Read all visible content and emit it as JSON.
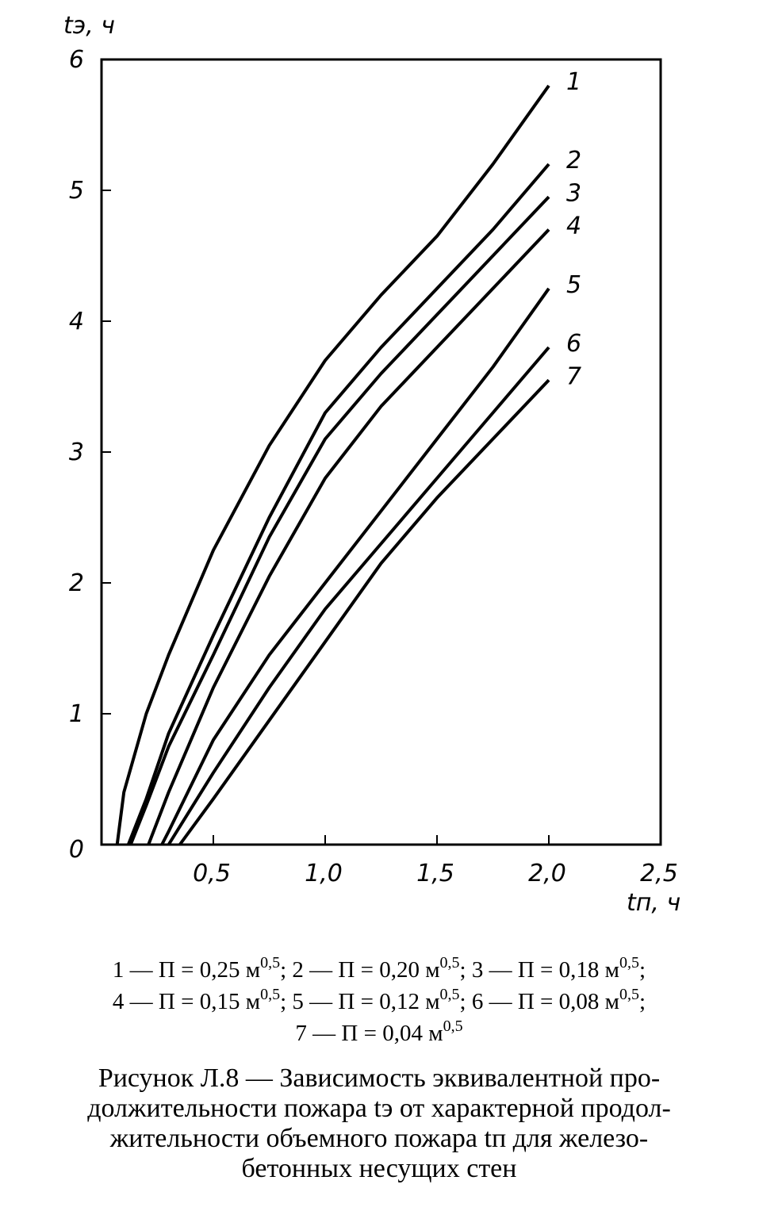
{
  "chart_data": {
    "type": "line",
    "y_label": "tэ, ч",
    "x_label": "tп, ч",
    "xlim": [
      0,
      2.5
    ],
    "ylim": [
      0,
      6
    ],
    "xticks": [
      {
        "value": 0.5,
        "label": "0,5"
      },
      {
        "value": 1.0,
        "label": "1,0"
      },
      {
        "value": 1.5,
        "label": "1,5"
      },
      {
        "value": 2.0,
        "label": "2,0"
      },
      {
        "value": 2.5,
        "label": "2,5"
      }
    ],
    "yticks": [
      0,
      1,
      2,
      3,
      4,
      5,
      6
    ],
    "color": "#000000",
    "series": [
      {
        "name": "1",
        "x": [
          0.07,
          0.1,
          0.2,
          0.3,
          0.5,
          0.75,
          1.0,
          1.25,
          1.5,
          1.75,
          2.0
        ],
        "values": [
          0,
          0.4,
          1.0,
          1.45,
          2.25,
          3.05,
          3.7,
          4.2,
          4.65,
          5.2,
          5.8
        ]
      },
      {
        "name": "2",
        "x": [
          0.12,
          0.2,
          0.3,
          0.5,
          0.75,
          1.0,
          1.25,
          1.5,
          1.75,
          2.0
        ],
        "values": [
          0,
          0.35,
          0.85,
          1.6,
          2.5,
          3.3,
          3.8,
          4.25,
          4.7,
          5.2
        ]
      },
      {
        "name": "3",
        "x": [
          0.13,
          0.2,
          0.3,
          0.5,
          0.75,
          1.0,
          1.25,
          1.5,
          1.75,
          2.0
        ],
        "values": [
          0,
          0.3,
          0.75,
          1.45,
          2.35,
          3.1,
          3.6,
          4.05,
          4.5,
          4.95
        ]
      },
      {
        "name": "4",
        "x": [
          0.21,
          0.3,
          0.5,
          0.75,
          1.0,
          1.25,
          1.5,
          1.75,
          2.0
        ],
        "values": [
          0,
          0.4,
          1.2,
          2.05,
          2.8,
          3.35,
          3.8,
          4.25,
          4.7
        ]
      },
      {
        "name": "5",
        "x": [
          0.27,
          0.3,
          0.5,
          0.75,
          1.0,
          1.25,
          1.5,
          1.75,
          2.0
        ],
        "values": [
          0,
          0.1,
          0.8,
          1.45,
          2.0,
          2.55,
          3.1,
          3.65,
          4.25
        ]
      },
      {
        "name": "6",
        "x": [
          0.3,
          0.5,
          0.75,
          1.0,
          1.25,
          1.5,
          1.75,
          2.0
        ],
        "values": [
          0,
          0.55,
          1.2,
          1.8,
          2.3,
          2.8,
          3.3,
          3.8
        ]
      },
      {
        "name": "7",
        "x": [
          0.35,
          0.5,
          0.75,
          1.0,
          1.25,
          1.5,
          1.75,
          2.0
        ],
        "values": [
          0,
          0.35,
          0.95,
          1.55,
          2.15,
          2.65,
          3.1,
          3.55
        ]
      }
    ]
  },
  "legend": [
    {
      "label": "1 — П = 0,25 м",
      "sup": "0,5",
      "sep": ";"
    },
    {
      "label": "2 — П = 0,20 м",
      "sup": "0,5",
      "sep": ";"
    },
    {
      "label": "3 — П = 0,18 м",
      "sup": "0,5",
      "sep": ";"
    },
    {
      "label": "4 — П = 0,15 м",
      "sup": "0,5",
      "sep": ";"
    },
    {
      "label": "5 — П = 0,12 м",
      "sup": "0,5",
      "sep": ";"
    },
    {
      "label": "6 — П = 0,08 м",
      "sup": "0,5",
      "sep": ";"
    },
    {
      "label": "7 — П = 0,04 м",
      "sup": "0,5"
    }
  ],
  "caption": [
    "Рисунок Л.8 — Зависимость эквивалентной про-",
    "должительности пожара tэ от характерной продол-",
    "жительности объемного пожара tп для железо-",
    "бетонных несущих стен"
  ]
}
